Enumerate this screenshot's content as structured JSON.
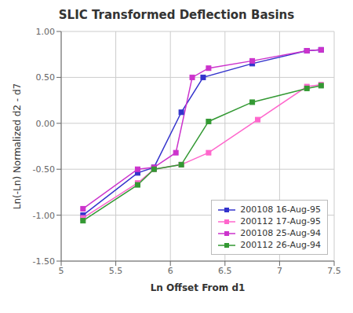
{
  "chart_data": {
    "type": "line",
    "title": "SLIC Transformed Deflection Basins",
    "xlabel": "Ln Offset From d1",
    "ylabel": "Ln(-Ln) Normalized d2 - d7",
    "xlim": [
      5.0,
      7.5
    ],
    "ylim": [
      -1.5,
      1.0
    ],
    "xticks": [
      5,
      5.5,
      6,
      6.5,
      7,
      7.5
    ],
    "yticks": [
      {
        "value": -1.5,
        "label": "-1.50"
      },
      {
        "value": -1.0,
        "label": "-1.00"
      },
      {
        "value": -0.5,
        "label": "-0.50"
      },
      {
        "value": 0.0,
        "label": "0.00"
      },
      {
        "value": 0.5,
        "label": "0.50"
      },
      {
        "value": 1.0,
        "label": "1.00"
      }
    ],
    "grid": true,
    "legend": "lower right",
    "series": [
      {
        "name": "200108 16-Aug-95",
        "color": "#3333CC",
        "marker": "square",
        "x": [
          5.2,
          5.7,
          5.85,
          6.1,
          6.3,
          6.75,
          7.25,
          7.38
        ],
        "values": [
          -1.0,
          -0.54,
          -0.48,
          0.12,
          0.5,
          0.65,
          0.79,
          0.8
        ]
      },
      {
        "name": "200112 17-Aug-95",
        "color": "#FF66CC",
        "marker": "square",
        "x": [
          5.2,
          5.7,
          5.85,
          6.1,
          6.35,
          6.8,
          7.25,
          7.38
        ],
        "values": [
          -1.03,
          -0.65,
          -0.5,
          -0.45,
          -0.32,
          0.04,
          0.4,
          0.42
        ]
      },
      {
        "name": "200108 25-Aug-94",
        "color": "#CC33CC",
        "marker": "square",
        "x": [
          5.2,
          5.7,
          5.85,
          6.05,
          6.2,
          6.35,
          6.75,
          7.25,
          7.38
        ],
        "values": [
          -0.93,
          -0.5,
          -0.48,
          -0.32,
          0.5,
          0.6,
          0.68,
          0.79,
          0.8
        ]
      },
      {
        "name": "200112 26-Aug-94",
        "color": "#339933",
        "marker": "square",
        "x": [
          5.2,
          5.7,
          5.85,
          6.1,
          6.35,
          6.75,
          7.25,
          7.38
        ],
        "values": [
          -1.06,
          -0.67,
          -0.5,
          -0.45,
          0.02,
          0.23,
          0.38,
          0.41
        ]
      }
    ]
  }
}
